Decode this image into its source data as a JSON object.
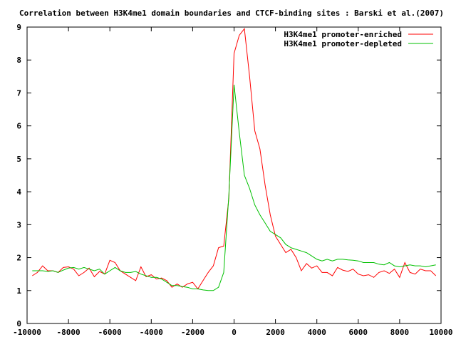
{
  "chart_data": {
    "type": "line",
    "title": "Correlation between H3K4me1 domain boundaries and CTCF-binding sites : Barski et al.(2007)",
    "xlabel": "",
    "ylabel": "",
    "xlim": [
      -10000,
      10000
    ],
    "ylim": [
      0,
      9
    ],
    "x_ticks": [
      "-10000",
      "-8000",
      "-6000",
      "-4000",
      "-2000",
      "0",
      "2000",
      "4000",
      "6000",
      "8000",
      "10000"
    ],
    "y_ticks": [
      "0",
      "1",
      "2",
      "3",
      "4",
      "5",
      "6",
      "7",
      "8",
      "9"
    ],
    "grid": false,
    "legend_position": "top-right",
    "series": [
      {
        "name": "H3K4me1 promoter-enriched",
        "color": "#ff0000",
        "x": [
          -9750,
          -9500,
          -9250,
          -9000,
          -8750,
          -8500,
          -8250,
          -8000,
          -7750,
          -7500,
          -7250,
          -7000,
          -6750,
          -6500,
          -6250,
          -6000,
          -5750,
          -5500,
          -5250,
          -5000,
          -4750,
          -4500,
          -4250,
          -4000,
          -3750,
          -3500,
          -3250,
          -3000,
          -2750,
          -2500,
          -2250,
          -2000,
          -1750,
          -1500,
          -1250,
          -1000,
          -750,
          -500,
          -250,
          0,
          250,
          500,
          750,
          1000,
          1250,
          1500,
          1750,
          2000,
          2250,
          2500,
          2750,
          3000,
          3250,
          3500,
          3750,
          4000,
          4250,
          4500,
          4750,
          5000,
          5250,
          5500,
          5750,
          6000,
          6250,
          6500,
          6750,
          7000,
          7250,
          7500,
          7750,
          8000,
          8250,
          8500,
          8750,
          9000,
          9250,
          9500,
          9750
        ],
        "values": [
          1.45,
          1.55,
          1.75,
          1.6,
          1.6,
          1.55,
          1.7,
          1.72,
          1.65,
          1.45,
          1.55,
          1.68,
          1.42,
          1.58,
          1.5,
          1.92,
          1.85,
          1.6,
          1.5,
          1.4,
          1.3,
          1.72,
          1.42,
          1.48,
          1.35,
          1.38,
          1.3,
          1.1,
          1.2,
          1.1,
          1.2,
          1.25,
          1.05,
          1.3,
          1.55,
          1.75,
          2.3,
          2.35,
          3.8,
          8.2,
          8.75,
          8.95,
          7.5,
          5.85,
          5.3,
          4.2,
          3.3,
          2.65,
          2.4,
          2.15,
          2.25,
          2.0,
          1.6,
          1.82,
          1.68,
          1.75,
          1.55,
          1.55,
          1.45,
          1.7,
          1.62,
          1.58,
          1.65,
          1.5,
          1.45,
          1.48,
          1.4,
          1.55,
          1.6,
          1.52,
          1.65,
          1.4,
          1.85,
          1.55,
          1.5,
          1.65,
          1.6,
          1.6,
          1.45
        ]
      },
      {
        "name": "H3K4me1 promoter-depleted",
        "color": "#00c000",
        "x": [
          -9750,
          -9500,
          -9250,
          -9000,
          -8750,
          -8500,
          -8250,
          -8000,
          -7750,
          -7500,
          -7250,
          -7000,
          -6750,
          -6500,
          -6250,
          -6000,
          -5750,
          -5500,
          -5250,
          -5000,
          -4750,
          -4500,
          -4250,
          -4000,
          -3750,
          -3500,
          -3250,
          -3000,
          -2750,
          -2500,
          -2250,
          -2000,
          -1750,
          -1500,
          -1250,
          -1000,
          -750,
          -500,
          -250,
          0,
          250,
          500,
          750,
          1000,
          1250,
          1500,
          1750,
          2000,
          2250,
          2500,
          2750,
          3000,
          3250,
          3500,
          3750,
          4000,
          4250,
          4500,
          4750,
          5000,
          5250,
          5500,
          5750,
          6000,
          6250,
          6500,
          6750,
          7000,
          7250,
          7500,
          7750,
          8000,
          8250,
          8500,
          8750,
          9000,
          9250,
          9500,
          9750
        ],
        "values": [
          1.6,
          1.6,
          1.6,
          1.58,
          1.6,
          1.55,
          1.62,
          1.68,
          1.7,
          1.65,
          1.7,
          1.65,
          1.6,
          1.65,
          1.5,
          1.6,
          1.7,
          1.6,
          1.55,
          1.55,
          1.58,
          1.5,
          1.45,
          1.4,
          1.4,
          1.35,
          1.25,
          1.15,
          1.15,
          1.12,
          1.1,
          1.05,
          1.05,
          1.02,
          1.0,
          1.0,
          1.1,
          1.55,
          3.9,
          7.25,
          5.8,
          4.5,
          4.1,
          3.6,
          3.3,
          3.05,
          2.8,
          2.7,
          2.6,
          2.4,
          2.3,
          2.25,
          2.2,
          2.15,
          2.05,
          1.95,
          1.9,
          1.95,
          1.9,
          1.95,
          1.95,
          1.93,
          1.92,
          1.9,
          1.85,
          1.85,
          1.85,
          1.8,
          1.78,
          1.85,
          1.75,
          1.72,
          1.75,
          1.78,
          1.75,
          1.75,
          1.72,
          1.75,
          1.78
        ]
      }
    ]
  }
}
